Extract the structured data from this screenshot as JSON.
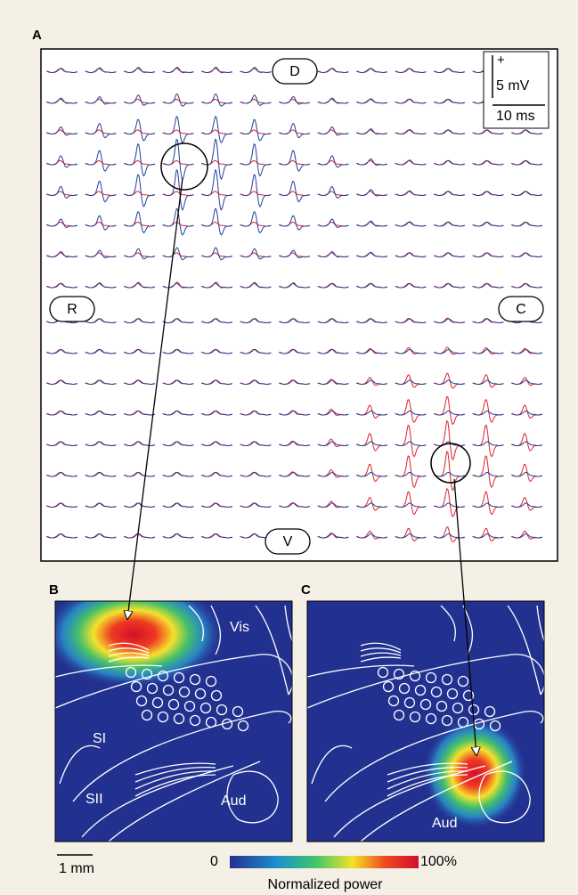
{
  "panel_a": {
    "label": "A",
    "orientation": {
      "dorsal": "D",
      "rostral": "R",
      "caudal": "C",
      "ventral": "V"
    },
    "scale_bar": {
      "polarity": "+",
      "voltage": "5 mV",
      "time": "10 ms"
    }
  },
  "panel_b": {
    "label": "B",
    "regions": [
      "Vis",
      "SI",
      "SII",
      "Aud"
    ]
  },
  "panel_c": {
    "label": "C",
    "regions": [
      "Aud"
    ]
  },
  "scale": "1 mm",
  "colorbar": {
    "min_label": "0",
    "max_label": "100%",
    "title": "Normalized power"
  }
}
